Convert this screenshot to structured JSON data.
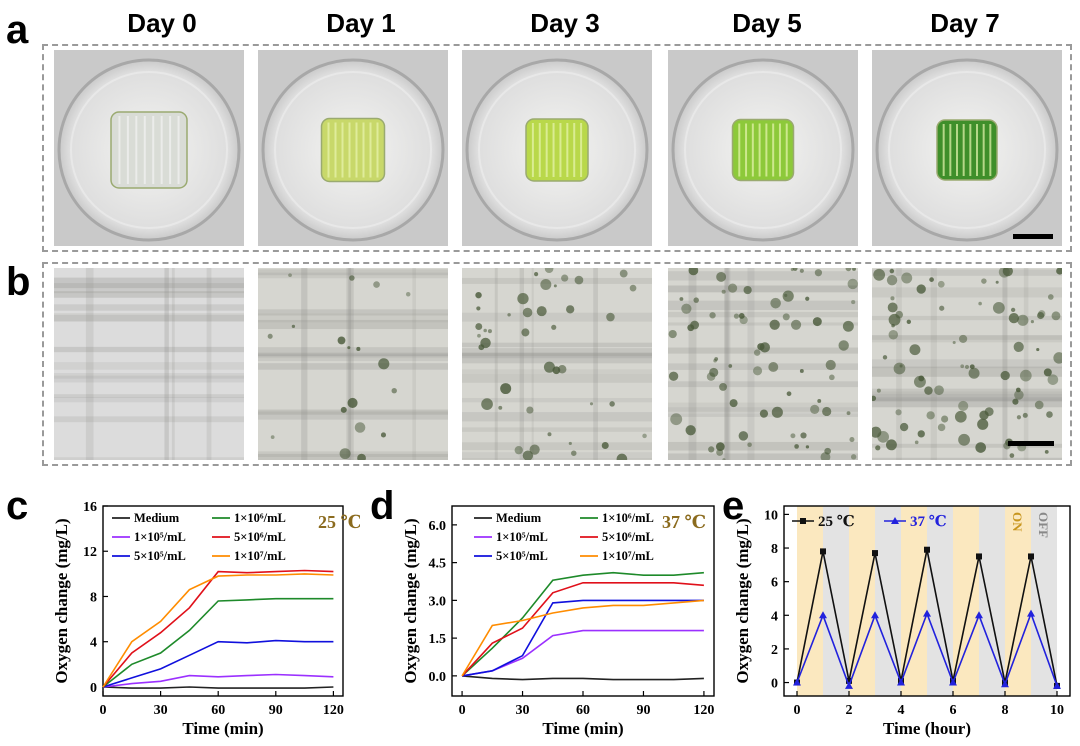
{
  "figure": {
    "panel_letters": [
      "a",
      "b",
      "c",
      "d",
      "e"
    ],
    "days": [
      "Day 0",
      "Day 1",
      "Day 3",
      "Day 5",
      "Day 7"
    ],
    "photo_tints": [
      "#d9dcd6",
      "#c8d86a",
      "#b9d84a",
      "#8dc93a",
      "#3f8f2a"
    ],
    "micro_density": [
      0,
      0.15,
      0.35,
      0.6,
      0.7
    ]
  },
  "chart_data": [
    {
      "panel": "c",
      "type": "line",
      "xlabel": "Time (min)",
      "ylabel": "Oxygen change (mg/L)",
      "xlim": [
        0,
        125
      ],
      "ylim": [
        -0.8,
        16
      ],
      "xticks": [
        0,
        30,
        60,
        90,
        120
      ],
      "yticks": [
        0,
        4,
        8,
        12,
        16
      ],
      "annotation": "25 ℃",
      "annotation_color": "#8b6b1e",
      "legend": [
        "Medium",
        "1×10⁵/mL",
        "5×10⁵/mL",
        "1×10⁶/mL",
        "5×10⁶/mL",
        "1×10⁷/mL"
      ],
      "x": [
        0,
        15,
        30,
        45,
        60,
        75,
        90,
        105,
        120
      ],
      "series": [
        {
          "name": "Medium",
          "color": "#222222",
          "values": [
            0,
            -0.1,
            -0.1,
            0,
            -0.1,
            -0.1,
            -0.1,
            -0.1,
            0
          ]
        },
        {
          "name": "1×10⁵/mL",
          "color": "#9b30ff",
          "values": [
            0,
            0.3,
            0.5,
            1.0,
            0.9,
            1.0,
            1.1,
            1.0,
            0.9
          ]
        },
        {
          "name": "5×10⁵/mL",
          "color": "#1010dd",
          "values": [
            0,
            0.8,
            1.6,
            2.8,
            4.0,
            3.9,
            4.1,
            4.0,
            4.0
          ]
        },
        {
          "name": "1×10⁶/mL",
          "color": "#1e8a2a",
          "values": [
            0,
            2.0,
            3.0,
            5.0,
            7.6,
            7.7,
            7.8,
            7.8,
            7.8
          ]
        },
        {
          "name": "5×10⁶/mL",
          "color": "#e0101a",
          "values": [
            0,
            3.0,
            4.8,
            7.0,
            10.2,
            10.1,
            10.2,
            10.3,
            10.2
          ]
        },
        {
          "name": "1×10⁷/mL",
          "color": "#ff8c00",
          "values": [
            0,
            4.0,
            5.8,
            8.6,
            9.8,
            9.9,
            9.9,
            10.0,
            9.9
          ]
        }
      ]
    },
    {
      "panel": "d",
      "type": "line",
      "xlabel": "Time (min)",
      "ylabel": "Oxygen change (mg/L)",
      "xlim": [
        -5,
        125
      ],
      "ylim": [
        -0.8,
        6.75
      ],
      "xticks": [
        0,
        30,
        60,
        90,
        120
      ],
      "yticks": [
        0.0,
        1.5,
        3.0,
        4.5,
        6.0
      ],
      "ytick_labels": [
        "0.0",
        "1.5",
        "3.0",
        "4.5",
        "6.0"
      ],
      "annotation": "37 ℃",
      "annotation_color": "#8b6b1e",
      "legend": [
        "Medium",
        "1×10⁵/mL",
        "5×10⁵/mL",
        "1×10⁶/mL",
        "5×10⁶/mL",
        "1×10⁷/mL"
      ],
      "x": [
        0,
        15,
        30,
        45,
        60,
        75,
        90,
        105,
        120
      ],
      "series": [
        {
          "name": "Medium",
          "color": "#222222",
          "values": [
            0,
            -0.1,
            -0.15,
            -0.1,
            -0.1,
            -0.15,
            -0.15,
            -0.15,
            -0.1
          ]
        },
        {
          "name": "1×10⁵/mL",
          "color": "#9b30ff",
          "values": [
            0,
            0.2,
            0.7,
            1.6,
            1.8,
            1.8,
            1.8,
            1.8,
            1.8
          ]
        },
        {
          "name": "5×10⁵/mL",
          "color": "#1010dd",
          "values": [
            0,
            0.2,
            0.8,
            2.9,
            3.0,
            3.0,
            3.0,
            3.0,
            3.0
          ]
        },
        {
          "name": "1×10⁶/mL",
          "color": "#1e8a2a",
          "values": [
            0,
            1.1,
            2.3,
            3.8,
            4.0,
            4.1,
            4.0,
            4.0,
            4.1
          ]
        },
        {
          "name": "5×10⁶/mL",
          "color": "#e0101a",
          "values": [
            0,
            1.3,
            1.9,
            3.3,
            3.7,
            3.7,
            3.7,
            3.7,
            3.6
          ]
        },
        {
          "name": "1×10⁷/mL",
          "color": "#ff8c00",
          "values": [
            0,
            2.0,
            2.2,
            2.5,
            2.7,
            2.8,
            2.8,
            2.9,
            3.0
          ]
        }
      ]
    },
    {
      "panel": "e",
      "type": "line",
      "xlabel": "Time (hour)",
      "ylabel": "Oxygen change (mg/L)",
      "xlim": [
        -0.5,
        10.5
      ],
      "ylim": [
        -0.8,
        10.5
      ],
      "xticks": [
        0,
        2,
        4,
        6,
        8,
        10
      ],
      "yticks": [
        0,
        2,
        4,
        6,
        8,
        10
      ],
      "light_bands": [
        [
          0,
          1
        ],
        [
          2,
          3
        ],
        [
          4,
          5
        ],
        [
          6,
          7
        ],
        [
          8,
          9
        ]
      ],
      "dark_bands": [
        [
          1,
          2
        ],
        [
          3,
          4
        ],
        [
          5,
          6
        ],
        [
          7,
          8
        ],
        [
          9,
          10
        ]
      ],
      "band_light_color": "#fbe8bf",
      "band_dark_color": "#e3e3e3",
      "on_label": "ON",
      "off_label": "OFF",
      "on_color": "#c8961e",
      "off_color": "#888888",
      "x": [
        0,
        1,
        2,
        3,
        4,
        5,
        6,
        7,
        8,
        9,
        10
      ],
      "series": [
        {
          "name": "25 ℃",
          "color": "#111111",
          "marker": "square",
          "values": [
            0,
            7.8,
            0.1,
            7.7,
            0.1,
            7.9,
            0.1,
            7.5,
            0,
            7.5,
            -0.2
          ]
        },
        {
          "name": "37 ℃",
          "color": "#2222dd",
          "marker": "triangle",
          "values": [
            0,
            4.0,
            -0.2,
            4.0,
            0,
            4.1,
            0,
            4.0,
            -0.1,
            4.1,
            -0.2
          ]
        }
      ]
    }
  ]
}
